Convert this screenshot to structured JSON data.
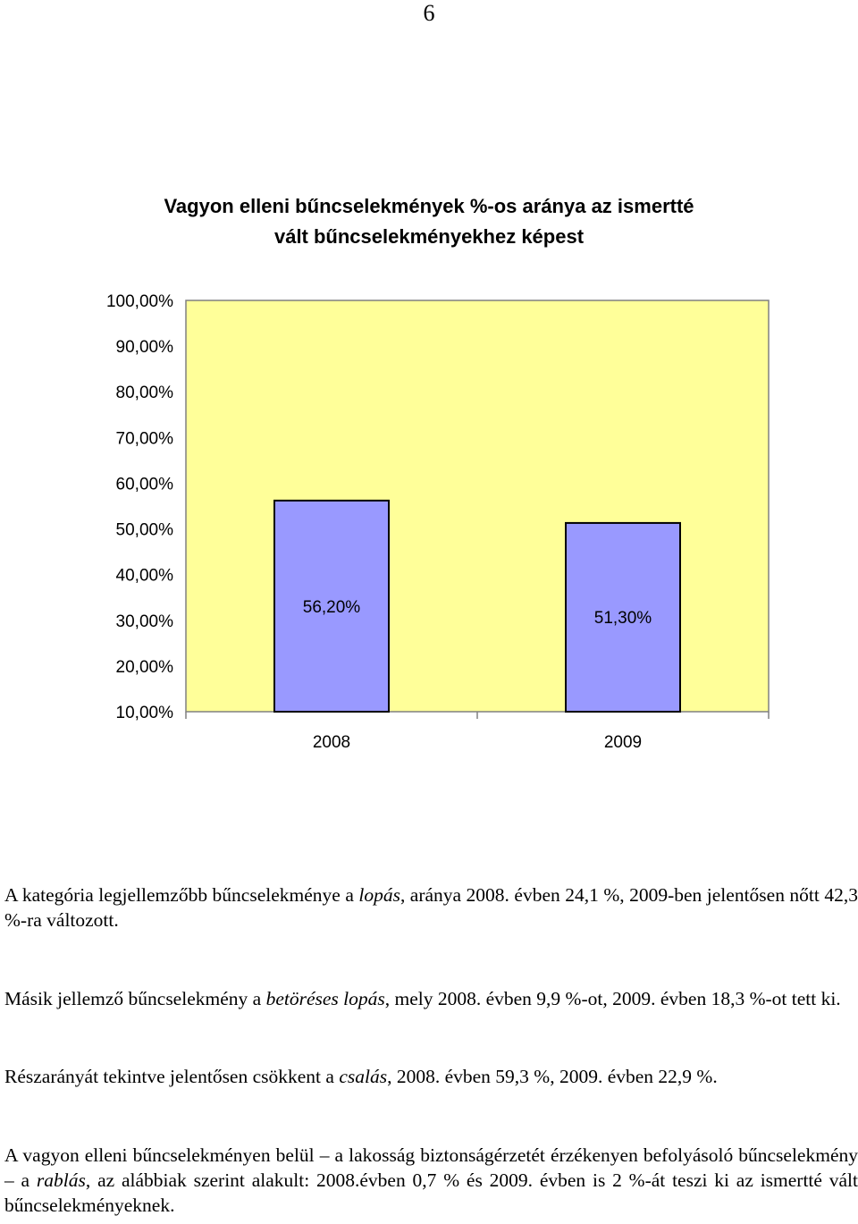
{
  "page_number": "6",
  "chart_data": {
    "type": "bar",
    "title_lines": [
      "Vagyon elleni bűncselekmények %-os aránya az ismertté",
      "vált bűncselekményekhez képest"
    ],
    "categories": [
      "2008",
      "2009"
    ],
    "values": [
      56.2,
      51.3
    ],
    "data_labels": [
      "56,20%",
      "51,30%"
    ],
    "ylim": [
      10,
      100
    ],
    "y_ticks": [
      "100,00%",
      "90,00%",
      "80,00%",
      "70,00%",
      "60,00%",
      "50,00%",
      "40,00%",
      "30,00%",
      "20,00%",
      "10,00%"
    ],
    "grid": false,
    "legend": "none",
    "colors": {
      "plot_background": "#FFFF99",
      "bar_fill": "#9999FF",
      "bar_stroke": "#000000"
    }
  },
  "paragraphs": {
    "p1": {
      "t1": "A kategória legjellemzőbb bűncselekménye a ",
      "em1": "lopás",
      "t2": ", aránya 2008. évben 24,1 %, 2009-ben jelentősen nőtt 42,3 %-ra változott."
    },
    "p2": {
      "t1": "Másik jellemző bűncselekmény a ",
      "em1": "betöréses lopás",
      "t2": ", mely 2008. évben 9,9 %-ot, 2009. évben 18,3 %-ot tett ki."
    },
    "p3": {
      "t1": "Részarányát tekintve jelentősen csökkent a ",
      "em1": "csalás",
      "t2": ", 2008. évben 59,3 %, 2009. évben 22,9 %."
    },
    "p4": {
      "t1": "A vagyon elleni bűncselekményen belül – a lakosság biztonságérzetét érzékenyen befolyásoló bűncselekmény – a ",
      "em1": "rablás",
      "t2": ", az alábbiak szerint alakult: 2008.évben 0,7 % és 2009. évben is 2 %-át teszi ki az ismertté vált bűncselekményeknek."
    }
  }
}
